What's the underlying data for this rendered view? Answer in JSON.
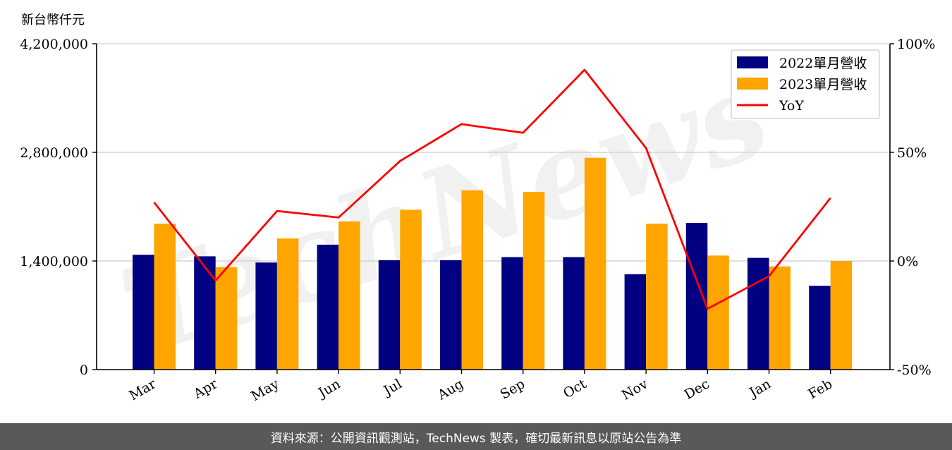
{
  "chart_data": {
    "type": "bar",
    "unit_label": "新台幣仟元",
    "categories": [
      "Mar",
      "Apr",
      "May",
      "Jun",
      "Jul",
      "Aug",
      "Sep",
      "Oct",
      "Nov",
      "Dec",
      "Jan",
      "Feb"
    ],
    "series": [
      {
        "name": "2022單月營收",
        "type": "bar",
        "color": "#000080",
        "values": [
          1480000,
          1460000,
          1380000,
          1610000,
          1410000,
          1410000,
          1450000,
          1450000,
          1230000,
          1890000,
          1440000,
          1080000
        ]
      },
      {
        "name": "2023單月營收",
        "type": "bar",
        "color": "#FFA500",
        "values": [
          1880000,
          1320000,
          1690000,
          1910000,
          2060000,
          2310000,
          2290000,
          2730000,
          1880000,
          1470000,
          1330000,
          1400000
        ]
      },
      {
        "name": "YoY",
        "type": "line",
        "axis": "right",
        "color": "#FF0000",
        "values": [
          27,
          -9,
          23,
          20,
          46,
          63,
          59,
          88,
          52,
          -22,
          -7,
          29
        ]
      }
    ],
    "y_left": {
      "ylim": [
        0,
        4200000
      ],
      "ticks": [
        "0",
        "1,400,000",
        "2,800,000",
        "4,200,000"
      ],
      "tick_values": [
        0,
        1400000,
        2800000,
        4200000
      ]
    },
    "y_right": {
      "ylim": [
        -50,
        100
      ],
      "ticks": [
        "-50%",
        "0%",
        "50%",
        "100%"
      ],
      "tick_values": [
        -50,
        0,
        50,
        100
      ]
    },
    "grid": "horizontal",
    "legend_position": "top-right"
  },
  "watermark": "TechNews",
  "footer": {
    "source": "資料來源：公開資訊觀測站，TechNews 製表，確切最新訊息以原站公告為準"
  }
}
